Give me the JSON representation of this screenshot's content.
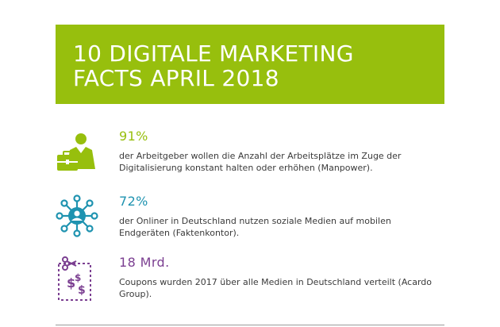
{
  "banner": {
    "title": "10 DIGITALE MARKETING\nFACTS APRIL 2018",
    "bg_color": "#97bf0d"
  },
  "facts": [
    {
      "icon": "businessman-briefcase-icon",
      "value": "91%",
      "color": "#97bf0d",
      "text": "der Arbeitgeber wollen die Anzahl der Arbeitsplätze im Zuge der Digitalisierung konstant halten oder erhöhen (Manpower)."
    },
    {
      "icon": "social-network-icon",
      "value": "72%",
      "color": "#1f93b0",
      "text": "der Onliner in Deutschland nutzen soziale Medien auf mobilen Endgeräten (Faktenkontor)."
    },
    {
      "icon": "coupon-scissors-icon",
      "value": "18 Mrd.",
      "color": "#7b3f91",
      "text": "Coupons wurden 2017 über alle Medien in Deutschland verteilt (Acardo Group)."
    }
  ]
}
